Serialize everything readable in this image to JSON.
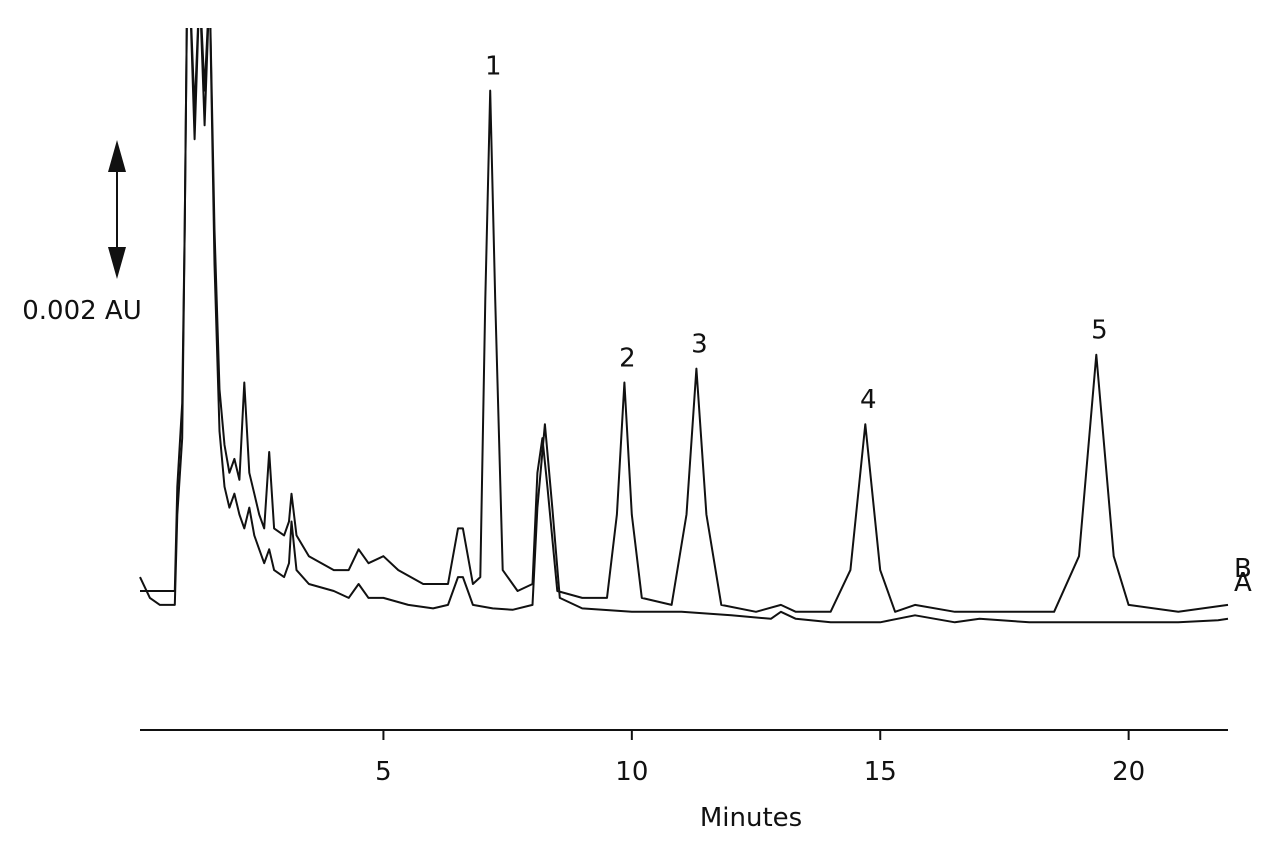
{
  "chart_data": {
    "type": "line",
    "title": "",
    "xlabel": "Minutes",
    "ylabel": "",
    "xlim": [
      0.1,
      22
    ],
    "ylim": [
      -0.0017,
      0.0084
    ],
    "x_ticks": [
      5,
      10,
      15,
      20
    ],
    "scale_bar": {
      "label": "0.002 AU",
      "value": 0.002
    },
    "color": "#111111",
    "series": [
      {
        "name": "A",
        "points": [
          [
            0.1,
            0.0005
          ],
          [
            0.3,
            0.0002
          ],
          [
            0.5,
            0.0001
          ],
          [
            0.8,
            0.0001
          ],
          [
            0.85,
            0.0014
          ],
          [
            0.95,
            0.0025
          ],
          [
            1.0,
            0.0055
          ],
          [
            1.05,
            0.009
          ],
          [
            1.1,
            0.009
          ],
          [
            1.2,
            0.0068
          ],
          [
            1.3,
            0.009
          ],
          [
            1.4,
            0.007
          ],
          [
            1.5,
            0.009
          ],
          [
            1.6,
            0.005
          ],
          [
            1.7,
            0.0026
          ],
          [
            1.8,
            0.0018
          ],
          [
            1.9,
            0.0015
          ],
          [
            2.0,
            0.0017
          ],
          [
            2.1,
            0.0014
          ],
          [
            2.2,
            0.0012
          ],
          [
            2.3,
            0.0015
          ],
          [
            2.4,
            0.0011
          ],
          [
            2.5,
            0.0009
          ],
          [
            2.6,
            0.0007
          ],
          [
            2.7,
            0.0009
          ],
          [
            2.8,
            0.0006
          ],
          [
            3.0,
            0.0005
          ],
          [
            3.1,
            0.0007
          ],
          [
            3.15,
            0.0013
          ],
          [
            3.25,
            0.0006
          ],
          [
            3.5,
            0.0004
          ],
          [
            4.0,
            0.0003
          ],
          [
            4.3,
            0.0002
          ],
          [
            4.5,
            0.0004
          ],
          [
            4.7,
            0.0002
          ],
          [
            5.0,
            0.0002
          ],
          [
            5.5,
            0.0001
          ],
          [
            6.0,
            5e-05
          ],
          [
            6.3,
            0.0001
          ],
          [
            6.5,
            0.0005
          ],
          [
            6.6,
            0.0005
          ],
          [
            6.8,
            0.0001
          ],
          [
            7.2,
            5e-05
          ],
          [
            7.6,
            3e-05
          ],
          [
            8.0,
            0.0001
          ],
          [
            8.1,
            0.0015
          ],
          [
            8.25,
            0.0027
          ],
          [
            8.4,
            0.0015
          ],
          [
            8.55,
            0.0002
          ],
          [
            9.0,
            5e-05
          ],
          [
            10.0,
            0.0
          ],
          [
            11.0,
            0.0
          ],
          [
            12.0,
            -5e-05
          ],
          [
            12.8,
            -0.0001
          ],
          [
            13.0,
            0.0
          ],
          [
            13.3,
            -0.0001
          ],
          [
            14.0,
            -0.00015
          ],
          [
            15.0,
            -0.00015
          ],
          [
            15.7,
            -5e-05
          ],
          [
            16.5,
            -0.00015
          ],
          [
            17.0,
            -0.0001
          ],
          [
            18.0,
            -0.00015
          ],
          [
            19.0,
            -0.00015
          ],
          [
            20.0,
            -0.00015
          ],
          [
            21.0,
            -0.00015
          ],
          [
            21.8,
            -0.00012
          ],
          [
            22.0,
            -0.0001
          ]
        ]
      },
      {
        "name": "B",
        "points": [
          [
            0.1,
            0.0003
          ],
          [
            0.5,
            0.0003
          ],
          [
            0.8,
            0.0003
          ],
          [
            0.85,
            0.0018
          ],
          [
            0.95,
            0.003
          ],
          [
            1.0,
            0.0055
          ],
          [
            1.05,
            0.009
          ],
          [
            1.1,
            0.009
          ],
          [
            1.2,
            0.0072
          ],
          [
            1.3,
            0.009
          ],
          [
            1.4,
            0.0075
          ],
          [
            1.5,
            0.009
          ],
          [
            1.6,
            0.0055
          ],
          [
            1.7,
            0.0032
          ],
          [
            1.8,
            0.0024
          ],
          [
            1.9,
            0.002
          ],
          [
            2.0,
            0.0022
          ],
          [
            2.1,
            0.0019
          ],
          [
            2.2,
            0.0033
          ],
          [
            2.3,
            0.002
          ],
          [
            2.4,
            0.0017
          ],
          [
            2.5,
            0.0014
          ],
          [
            2.6,
            0.0012
          ],
          [
            2.7,
            0.0023
          ],
          [
            2.8,
            0.0012
          ],
          [
            3.0,
            0.0011
          ],
          [
            3.1,
            0.0013
          ],
          [
            3.15,
            0.0017
          ],
          [
            3.25,
            0.0011
          ],
          [
            3.5,
            0.0008
          ],
          [
            4.0,
            0.0006
          ],
          [
            4.3,
            0.0006
          ],
          [
            4.5,
            0.0009
          ],
          [
            4.7,
            0.0007
          ],
          [
            5.0,
            0.0008
          ],
          [
            5.3,
            0.0006
          ],
          [
            5.8,
            0.0004
          ],
          [
            6.3,
            0.0004
          ],
          [
            6.5,
            0.0012
          ],
          [
            6.6,
            0.0012
          ],
          [
            6.8,
            0.0004
          ],
          [
            6.95,
            0.0005
          ],
          [
            7.05,
            0.0045
          ],
          [
            7.15,
            0.0075
          ],
          [
            7.25,
            0.0045
          ],
          [
            7.4,
            0.0006
          ],
          [
            7.7,
            0.0003
          ],
          [
            8.0,
            0.0004
          ],
          [
            8.1,
            0.002
          ],
          [
            8.2,
            0.0025
          ],
          [
            8.3,
            0.0018
          ],
          [
            8.5,
            0.0003
          ],
          [
            9.0,
            0.0002
          ],
          [
            9.5,
            0.0002
          ],
          [
            9.7,
            0.0014
          ],
          [
            9.85,
            0.0033
          ],
          [
            10.0,
            0.0014
          ],
          [
            10.2,
            0.0002
          ],
          [
            10.8,
            0.0001
          ],
          [
            11.1,
            0.0014
          ],
          [
            11.3,
            0.0035
          ],
          [
            11.5,
            0.0014
          ],
          [
            11.8,
            0.0001
          ],
          [
            12.5,
            0.0
          ],
          [
            13.0,
            0.0001
          ],
          [
            13.3,
            0.0
          ],
          [
            14.0,
            0.0
          ],
          [
            14.4,
            0.0006
          ],
          [
            14.7,
            0.0027
          ],
          [
            15.0,
            0.0006
          ],
          [
            15.3,
            0.0
          ],
          [
            15.7,
            0.0001
          ],
          [
            16.5,
            0.0
          ],
          [
            17.5,
            0.0
          ],
          [
            18.5,
            0.0
          ],
          [
            19.0,
            0.0008
          ],
          [
            19.35,
            0.0037
          ],
          [
            19.7,
            0.0008
          ],
          [
            20.0,
            0.0001
          ],
          [
            21.0,
            0.0
          ],
          [
            22.0,
            0.0001
          ]
        ]
      }
    ],
    "peak_labels": [
      {
        "text": "1",
        "x": 7.15,
        "y": 0.0075
      },
      {
        "text": "2",
        "x": 9.85,
        "y": 0.0033
      },
      {
        "text": "3",
        "x": 11.3,
        "y": 0.0035
      },
      {
        "text": "4",
        "x": 14.7,
        "y": 0.0027
      },
      {
        "text": "5",
        "x": 19.35,
        "y": 0.0037
      }
    ]
  }
}
